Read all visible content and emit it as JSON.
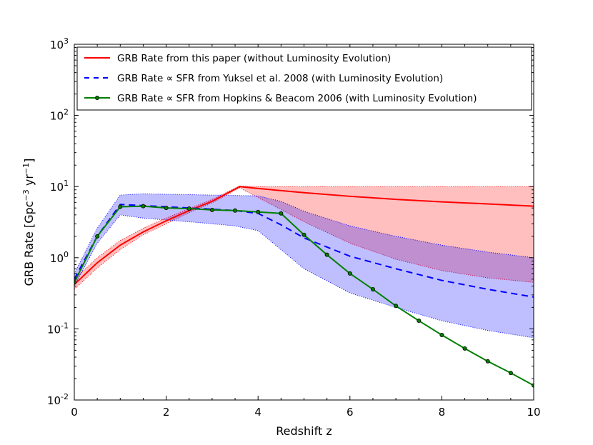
{
  "chart_data": {
    "type": "line",
    "title": "",
    "xlabel": "Redshift z",
    "ylabel_parts": {
      "pre": "GRB Rate [Gpc",
      "sup1": "−3",
      "mid": " yr",
      "sup2": "−1",
      "post": "]"
    },
    "xlim": [
      0,
      10
    ],
    "ylim_log10": [
      -2,
      3
    ],
    "y_scale": "log",
    "x_ticks": [
      0,
      2,
      4,
      6,
      8,
      10
    ],
    "x_tick_labels": [
      "0",
      "2",
      "4",
      "6",
      "8",
      "10"
    ],
    "y_ticks": [
      {
        "value": 0.01,
        "base": "10",
        "exp": "-2"
      },
      {
        "value": 0.1,
        "base": "10",
        "exp": "-1"
      },
      {
        "value": 1,
        "base": "10",
        "exp": "0"
      },
      {
        "value": 10,
        "base": "10",
        "exp": "1"
      },
      {
        "value": 100,
        "base": "10",
        "exp": "2"
      },
      {
        "value": 1000,
        "base": "10",
        "exp": "3"
      }
    ],
    "legend_position": "top-left",
    "series": [
      {
        "name": "GRB Rate from this paper (without Luminosity Evolution)",
        "style": "solid",
        "color": "#ff0000",
        "markers": false,
        "x": [
          0,
          0.5,
          1,
          1.5,
          2,
          2.5,
          3,
          3.6,
          4,
          5,
          6,
          7,
          8,
          9,
          10
        ],
        "y": [
          0.42,
          0.85,
          1.5,
          2.3,
          3.3,
          4.6,
          6.2,
          10,
          9.4,
          8.2,
          7.3,
          6.6,
          6.1,
          5.7,
          5.3
        ],
        "band": {
          "color": "#ff0000",
          "opacity": 0.25,
          "x": [
            0,
            0.5,
            1,
            1.5,
            2,
            2.5,
            3,
            3.6,
            4,
            5,
            6,
            7,
            8,
            9,
            10
          ],
          "lower": [
            0.36,
            0.72,
            1.3,
            2.1,
            3.0,
            4.3,
            5.9,
            9.6,
            7.0,
            3.2,
            1.6,
            0.95,
            0.66,
            0.52,
            0.45
          ],
          "upper": [
            0.5,
            1.0,
            1.75,
            2.6,
            3.6,
            4.9,
            6.6,
            10.2,
            10,
            10,
            10,
            10,
            10,
            10,
            10
          ]
        }
      },
      {
        "name": "GRB Rate ∝ SFR from Yuksel et al. 2008 (with Luminosity Evolution)",
        "style": "dashed",
        "color": "#0000ff",
        "markers": false,
        "x": [
          0,
          0.5,
          1,
          1.5,
          2,
          2.5,
          3,
          3.5,
          4,
          4.5,
          5,
          6,
          7,
          8,
          9,
          10
        ],
        "y": [
          0.5,
          2.0,
          5.6,
          5.4,
          5.2,
          5.0,
          4.8,
          4.6,
          4.2,
          2.9,
          1.9,
          1.05,
          0.7,
          0.48,
          0.36,
          0.28
        ],
        "band": {
          "color": "#0000ff",
          "opacity": 0.25,
          "x": [
            0,
            0.5,
            1,
            1.5,
            2,
            2.5,
            3,
            3.5,
            4,
            4.5,
            5,
            6,
            7,
            8,
            9,
            10
          ],
          "lower": [
            0.4,
            1.6,
            4.0,
            3.6,
            3.4,
            3.2,
            3.0,
            2.8,
            2.4,
            1.3,
            0.7,
            0.32,
            0.2,
            0.13,
            0.095,
            0.075
          ],
          "upper": [
            0.6,
            2.6,
            7.6,
            7.9,
            7.8,
            7.7,
            7.6,
            7.5,
            7.4,
            6.2,
            4.5,
            2.8,
            2.0,
            1.5,
            1.2,
            1.0
          ]
        }
      },
      {
        "name": "GRB Rate ∝ SFR from Hopkins & Beacom 2006 (with Luminosity Evolution)",
        "style": "solid",
        "color": "#007f00",
        "markers": true,
        "x": [
          0,
          0.5,
          1,
          1.5,
          2,
          2.5,
          3,
          3.5,
          4,
          4.5,
          5,
          5.5,
          6,
          6.5,
          7,
          7.5,
          8,
          8.5,
          9,
          9.5,
          10
        ],
        "y": [
          0.45,
          2.0,
          5.2,
          5.3,
          5.0,
          4.9,
          4.7,
          4.6,
          4.4,
          4.2,
          2.1,
          1.1,
          0.6,
          0.36,
          0.21,
          0.13,
          0.082,
          0.053,
          0.035,
          0.024,
          0.016
        ]
      }
    ]
  }
}
